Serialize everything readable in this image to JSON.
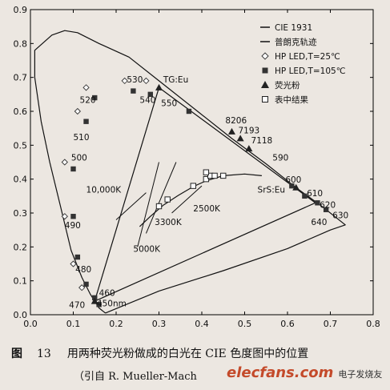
{
  "chart_data": {
    "type": "scatter",
    "xlim": [
      0.0,
      0.8
    ],
    "ylim": [
      0.0,
      0.9
    ],
    "x_ticks": [
      "0.0",
      "0.1",
      "0.2",
      "0.3",
      "0.4",
      "0.5",
      "0.6",
      "0.7",
      "0.8"
    ],
    "y_ticks": [
      "0.0",
      "0.1",
      "0.2",
      "0.3",
      "0.4",
      "0.5",
      "0.6",
      "0.7",
      "0.8",
      "0.9"
    ],
    "grid": false,
    "legend_position": "top-right",
    "legend": [
      {
        "label": "CIE 1931",
        "marker": "line"
      },
      {
        "label": "普朗克轨迹",
        "marker": "line"
      },
      {
        "label": "HP LED,T=25℃",
        "marker": "diamond-open"
      },
      {
        "label": "HP LED,T=105℃",
        "marker": "square-filled"
      },
      {
        "label": "荧光粉",
        "marker": "triangle-filled"
      },
      {
        "label": "表中结果",
        "marker": "square-open"
      }
    ],
    "cie_locus": [
      [
        0.175,
        0.005
      ],
      [
        0.17,
        0.01
      ],
      [
        0.16,
        0.02
      ],
      [
        0.14,
        0.06
      ],
      [
        0.12,
        0.11
      ],
      [
        0.095,
        0.19
      ],
      [
        0.07,
        0.32
      ],
      [
        0.045,
        0.45
      ],
      [
        0.025,
        0.57
      ],
      [
        0.01,
        0.7
      ],
      [
        0.01,
        0.78
      ],
      [
        0.05,
        0.825
      ],
      [
        0.08,
        0.838
      ],
      [
        0.11,
        0.832
      ],
      [
        0.16,
        0.8
      ],
      [
        0.23,
        0.76
      ],
      [
        0.3,
        0.69
      ],
      [
        0.39,
        0.6
      ],
      [
        0.47,
        0.52
      ],
      [
        0.55,
        0.445
      ],
      [
        0.62,
        0.375
      ],
      [
        0.68,
        0.32
      ],
      [
        0.735,
        0.265
      ],
      [
        0.7,
        0.25
      ],
      [
        0.6,
        0.195
      ],
      [
        0.45,
        0.13
      ],
      [
        0.3,
        0.07
      ],
      [
        0.175,
        0.005
      ]
    ],
    "planck_locus": [
      [
        0.54,
        0.41
      ],
      [
        0.5,
        0.415
      ],
      [
        0.45,
        0.41
      ],
      [
        0.41,
        0.395
      ],
      [
        0.38,
        0.378
      ],
      [
        0.345,
        0.352
      ],
      [
        0.31,
        0.323
      ],
      [
        0.28,
        0.29
      ],
      [
        0.255,
        0.26
      ]
    ],
    "gamut_triangles": [
      {
        "vertices": [
          [
            0.15,
            0.04
          ],
          [
            0.3,
            0.67
          ],
          [
            0.665,
            0.33
          ]
        ]
      },
      {
        "vertices": [
          [
            0.15,
            0.04
          ],
          [
            0.665,
            0.33
          ],
          [
            0.3,
            0.67
          ]
        ]
      }
    ],
    "series": [
      {
        "name": "HP LED,T=25℃",
        "marker": "diamond-open",
        "points": [
          [
            0.13,
            0.67
          ],
          [
            0.22,
            0.69
          ],
          [
            0.27,
            0.69
          ],
          [
            0.11,
            0.6
          ],
          [
            0.08,
            0.45
          ],
          [
            0.08,
            0.29
          ],
          [
            0.1,
            0.15
          ],
          [
            0.12,
            0.08
          ]
        ]
      },
      {
        "name": "HP LED,T=105℃",
        "marker": "square-filled",
        "points": [
          [
            0.15,
            0.64
          ],
          [
            0.24,
            0.66
          ],
          [
            0.28,
            0.65
          ],
          [
            0.13,
            0.57
          ],
          [
            0.1,
            0.43
          ],
          [
            0.1,
            0.29
          ],
          [
            0.11,
            0.17
          ],
          [
            0.13,
            0.09
          ],
          [
            0.15,
            0.05
          ],
          [
            0.16,
            0.03
          ],
          [
            0.37,
            0.6
          ],
          [
            0.61,
            0.38
          ],
          [
            0.64,
            0.35
          ],
          [
            0.67,
            0.33
          ],
          [
            0.69,
            0.31
          ]
        ]
      },
      {
        "name": "荧光粉",
        "marker": "triangle-filled",
        "points": [
          [
            0.3,
            0.67
          ],
          [
            0.47,
            0.54
          ],
          [
            0.49,
            0.52
          ],
          [
            0.51,
            0.49
          ],
          [
            0.15,
            0.04
          ],
          [
            0.62,
            0.375
          ]
        ]
      },
      {
        "name": "表中结果",
        "marker": "square-open",
        "points": [
          [
            0.3,
            0.32
          ],
          [
            0.32,
            0.34
          ],
          [
            0.38,
            0.38
          ],
          [
            0.41,
            0.4
          ],
          [
            0.42,
            0.41
          ],
          [
            0.43,
            0.41
          ],
          [
            0.45,
            0.41
          ],
          [
            0.41,
            0.42
          ]
        ]
      }
    ],
    "annotations": [
      {
        "text": "520",
        "x": 0.115,
        "y": 0.625
      },
      {
        "text": "530",
        "x": 0.225,
        "y": 0.685
      },
      {
        "text": "540",
        "x": 0.255,
        "y": 0.625
      },
      {
        "text": "550",
        "x": 0.305,
        "y": 0.615
      },
      {
        "text": "TG:Eu",
        "x": 0.31,
        "y": 0.685
      },
      {
        "text": "510",
        "x": 0.1,
        "y": 0.515
      },
      {
        "text": "500",
        "x": 0.095,
        "y": 0.455
      },
      {
        "text": "490",
        "x": 0.08,
        "y": 0.255
      },
      {
        "text": "480",
        "x": 0.105,
        "y": 0.125
      },
      {
        "text": "470",
        "x": 0.09,
        "y": 0.02
      },
      {
        "text": "460",
        "x": 0.16,
        "y": 0.055
      },
      {
        "text": "450nm",
        "x": 0.155,
        "y": 0.025
      },
      {
        "text": "8206",
        "x": 0.455,
        "y": 0.565
      },
      {
        "text": "7193",
        "x": 0.485,
        "y": 0.535
      },
      {
        "text": "7118",
        "x": 0.515,
        "y": 0.505
      },
      {
        "text": "590",
        "x": 0.565,
        "y": 0.455
      },
      {
        "text": "600",
        "x": 0.595,
        "y": 0.39
      },
      {
        "text": "610",
        "x": 0.645,
        "y": 0.35
      },
      {
        "text": "620",
        "x": 0.675,
        "y": 0.315
      },
      {
        "text": "630",
        "x": 0.705,
        "y": 0.285
      },
      {
        "text": "640",
        "x": 0.655,
        "y": 0.265
      },
      {
        "text": "SrS:Eu",
        "x": 0.53,
        "y": 0.36
      },
      {
        "text": "10,000K",
        "x": 0.13,
        "y": 0.36
      },
      {
        "text": "3300K",
        "x": 0.29,
        "y": 0.265
      },
      {
        "text": "2500K",
        "x": 0.38,
        "y": 0.305
      },
      {
        "text": "5000K",
        "x": 0.24,
        "y": 0.185
      }
    ]
  },
  "caption": {
    "label": "图",
    "number": "13",
    "title": "用两种荧光粉做成的白光在 CIE 色度图中的位置",
    "source": "（引自 R. Mueller-Mach"
  },
  "watermark": {
    "site": "elecfans.com",
    "tagline": "电子发烧友"
  }
}
